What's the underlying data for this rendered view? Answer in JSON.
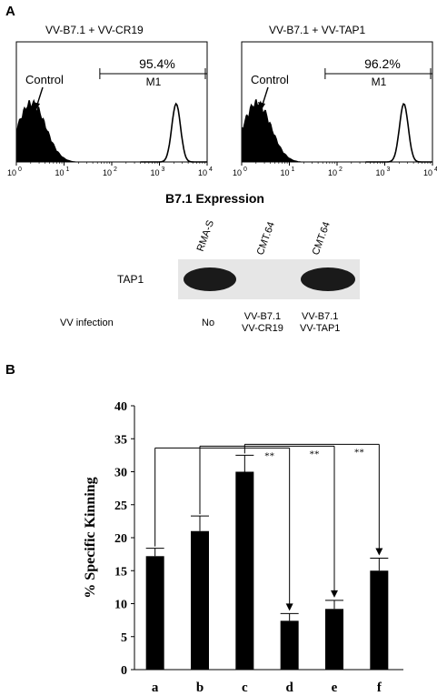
{
  "panel_a": {
    "letter": "A",
    "section_title": "B7.1 Expression",
    "histograms": [
      {
        "title": "VV-B7.1 + VV-CR19",
        "percent": "95.4%",
        "gate": "M1",
        "control_label": "Control",
        "peak_log": 3.35
      },
      {
        "title": "VV-B7.1 + VV-TAP1",
        "percent": "96.2%",
        "gate": "M1",
        "control_label": "Control",
        "peak_log": 3.4
      }
    ],
    "axis_ticks": [
      "10",
      "10",
      "10",
      "10",
      "10"
    ],
    "axis_exponents": [
      "0",
      "1",
      "2",
      "3",
      "4"
    ],
    "blot": {
      "protein": "TAP1",
      "lanes": [
        "RMA-S",
        "CMT.64",
        "CMT.64"
      ],
      "row_label": "VV infection",
      "infections": [
        [
          "No"
        ],
        [
          "VV-B7.1",
          "VV-CR19"
        ],
        [
          "VV-B7.1",
          "VV-TAP1"
        ]
      ],
      "band_intensity": [
        1,
        0,
        1
      ]
    }
  },
  "panel_b": {
    "letter": "B",
    "significance": "**"
  },
  "chart_data": {
    "type": "bar",
    "categories": [
      "a",
      "b",
      "c",
      "d",
      "e",
      "f"
    ],
    "values": [
      17.2,
      21.0,
      30.0,
      7.4,
      9.2,
      15.0
    ],
    "errors": [
      1.2,
      2.3,
      2.5,
      1.1,
      1.3,
      1.9
    ],
    "ylabel": "% Specific Kinning",
    "ylim": [
      0,
      40
    ],
    "yticks": [
      0,
      5,
      10,
      15,
      20,
      25,
      30,
      35,
      40
    ],
    "comparisons": [
      {
        "from": "a",
        "to": "d",
        "label": "**"
      },
      {
        "from": "b",
        "to": "e",
        "label": "**"
      },
      {
        "from": "c",
        "to": "f",
        "label": "**"
      }
    ]
  }
}
